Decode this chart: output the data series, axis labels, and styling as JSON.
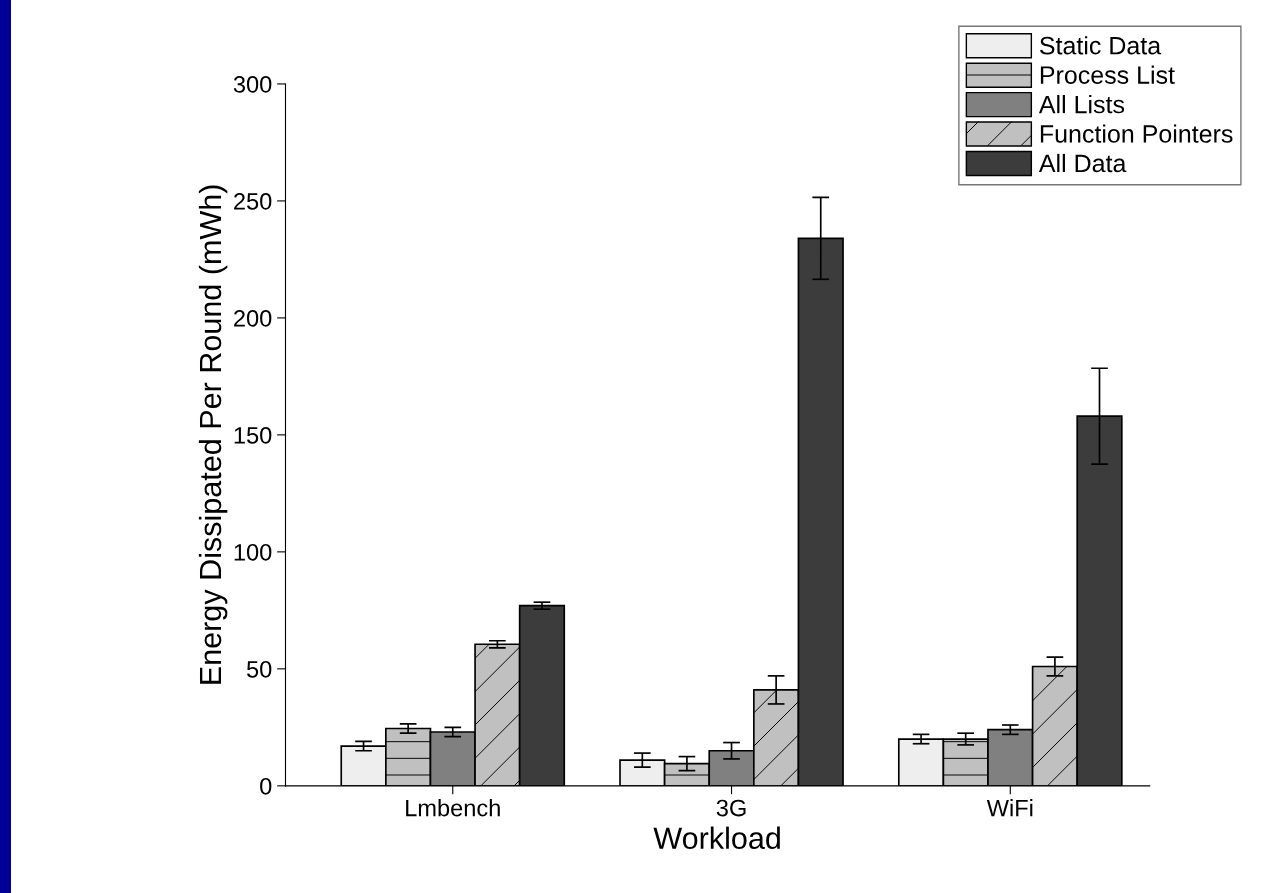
{
  "chart_data": {
    "type": "bar",
    "xlabel": "Workload",
    "ylabel": "Energy Dissipated Per Round (mWh)",
    "categories": [
      "Lmbench",
      "3G",
      "WiFi"
    ],
    "series": [
      {
        "name": "Static Data",
        "color": "#eeeeee",
        "values": [
          17,
          11,
          20
        ],
        "errors": [
          2,
          3,
          2
        ]
      },
      {
        "name": "Process List",
        "color": "#c0c0c0",
        "values": [
          24.5,
          9.5,
          20
        ],
        "errors": [
          2,
          3,
          2.5
        ]
      },
      {
        "name": "All Lists",
        "color": "#808080",
        "values": [
          23,
          15,
          24
        ],
        "errors": [
          2,
          3.5,
          2
        ]
      },
      {
        "name": "Function Pointers",
        "color": "#c0c0c0",
        "values": [
          60.5,
          41,
          51
        ],
        "errors": [
          1.5,
          6,
          4
        ]
      },
      {
        "name": "All Data",
        "color": "#3c3c3c",
        "values": [
          77,
          234,
          158
        ],
        "errors": [
          1.5,
          17.5,
          20.5
        ]
      }
    ],
    "ylim": [
      0,
      300
    ],
    "yticks": [
      0,
      50,
      100,
      150,
      200,
      250,
      300
    ],
    "grid": false,
    "legend": "top right"
  }
}
